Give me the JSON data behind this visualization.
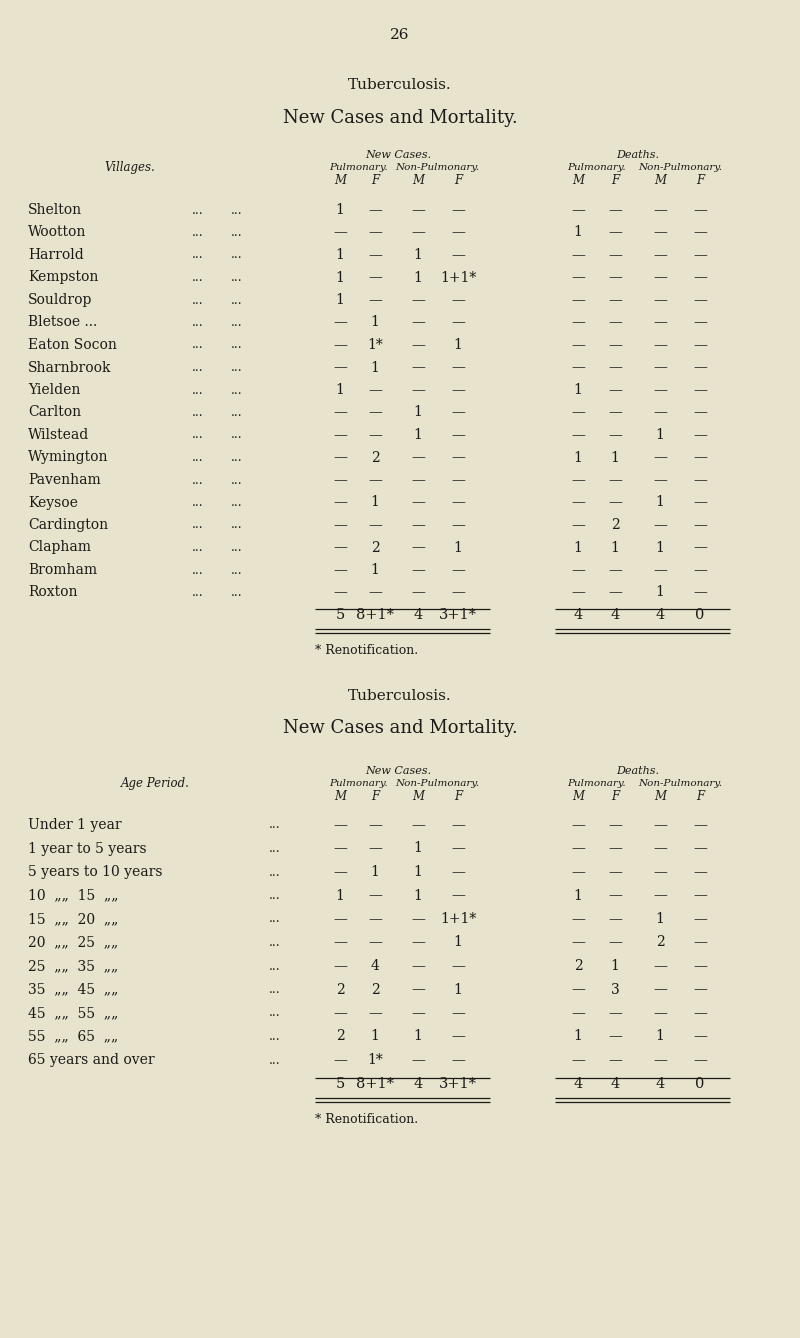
{
  "background_color": "#e8e3cc",
  "page_number": "26",
  "table1": {
    "title1": "Tuberculosis.",
    "title2": "New Cases and Mortality.",
    "new_cases_label": "New Cases.",
    "deaths_label": "Deaths.",
    "pulmonary_label": "Pulmonary.",
    "non_pulmonary_label": "Non-Pulmonary.",
    "mf_labels": [
      "M",
      "F",
      "M",
      "F",
      "M",
      "F",
      "M",
      "F"
    ],
    "row_label_header": "Villages.",
    "rows": [
      {
        "label": "Shelton",
        "nc_pm": "1",
        "nc_pf": "—",
        "nc_npm": "—",
        "nc_npf": "—",
        "d_pm": "—",
        "d_pf": "—",
        "d_npm": "—",
        "d_npf": "—"
      },
      {
        "label": "Wootton",
        "nc_pm": "—",
        "nc_pf": "—",
        "nc_npm": "—",
        "nc_npf": "—",
        "d_pm": "1",
        "d_pf": "—",
        "d_npm": "—",
        "d_npf": "—"
      },
      {
        "label": "Harrold",
        "nc_pm": "1",
        "nc_pf": "—",
        "nc_npm": "1",
        "nc_npf": "—",
        "d_pm": "—",
        "d_pf": "—",
        "d_npm": "—",
        "d_npf": "—"
      },
      {
        "label": "Kempston",
        "nc_pm": "1",
        "nc_pf": "—",
        "nc_npm": "1",
        "nc_npf": "1+1*",
        "d_pm": "—",
        "d_pf": "—",
        "d_npm": "—",
        "d_npf": "—"
      },
      {
        "label": "Souldrop",
        "nc_pm": "1",
        "nc_pf": "—",
        "nc_npm": "—",
        "nc_npf": "—",
        "d_pm": "—",
        "d_pf": "—",
        "d_npm": "—",
        "d_npf": "—"
      },
      {
        "label": "Bletsoe ...",
        "nc_pm": "—",
        "nc_pf": "1",
        "nc_npm": "—",
        "nc_npf": "—",
        "d_pm": "—",
        "d_pf": "—",
        "d_npm": "—",
        "d_npf": "—"
      },
      {
        "label": "Eaton Socon",
        "nc_pm": "—",
        "nc_pf": "1*",
        "nc_npm": "—",
        "nc_npf": "1",
        "d_pm": "—",
        "d_pf": "—",
        "d_npm": "—",
        "d_npf": "—"
      },
      {
        "label": "Sharnbrook",
        "nc_pm": "—",
        "nc_pf": "1",
        "nc_npm": "—",
        "nc_npf": "—",
        "d_pm": "—",
        "d_pf": "—",
        "d_npm": "—",
        "d_npf": "—"
      },
      {
        "label": "Yielden",
        "nc_pm": "1",
        "nc_pf": "—",
        "nc_npm": "—",
        "nc_npf": "—",
        "d_pm": "1",
        "d_pf": "—",
        "d_npm": "—",
        "d_npf": "—"
      },
      {
        "label": "Carlton",
        "nc_pm": "—",
        "nc_pf": "—",
        "nc_npm": "1",
        "nc_npf": "—",
        "d_pm": "—",
        "d_pf": "—",
        "d_npm": "—",
        "d_npf": "—"
      },
      {
        "label": "Wilstead",
        "nc_pm": "—",
        "nc_pf": "—",
        "nc_npm": "1",
        "nc_npf": "—",
        "d_pm": "—",
        "d_pf": "—",
        "d_npm": "1",
        "d_npf": "—"
      },
      {
        "label": "Wymington",
        "nc_pm": "—",
        "nc_pf": "2",
        "nc_npm": "—",
        "nc_npf": "—",
        "d_pm": "1",
        "d_pf": "1",
        "d_npm": "—",
        "d_npf": "—"
      },
      {
        "label": "Pavenham",
        "nc_pm": "—",
        "nc_pf": "—",
        "nc_npm": "—",
        "nc_npf": "—",
        "d_pm": "—",
        "d_pf": "—",
        "d_npm": "—",
        "d_npf": "—"
      },
      {
        "label": "Keysoe",
        "nc_pm": "—",
        "nc_pf": "1",
        "nc_npm": "—",
        "nc_npf": "—",
        "d_pm": "—",
        "d_pf": "—",
        "d_npm": "1",
        "d_npf": "—"
      },
      {
        "label": "Cardington",
        "nc_pm": "—",
        "nc_pf": "—",
        "nc_npm": "—",
        "nc_npf": "—",
        "d_pm": "—",
        "d_pf": "2",
        "d_npm": "—",
        "d_npf": "—"
      },
      {
        "label": "Clapham",
        "nc_pm": "—",
        "nc_pf": "2",
        "nc_npm": "—",
        "nc_npf": "1",
        "d_pm": "1",
        "d_pf": "1",
        "d_npm": "1",
        "d_npf": "—"
      },
      {
        "label": "Bromham",
        "nc_pm": "—",
        "nc_pf": "1",
        "nc_npm": "—",
        "nc_npf": "—",
        "d_pm": "—",
        "d_pf": "—",
        "d_npm": "—",
        "d_npf": "—"
      },
      {
        "label": "Roxton",
        "nc_pm": "—",
        "nc_pf": "—",
        "nc_npm": "—",
        "nc_npf": "—",
        "d_pm": "—",
        "d_pf": "—",
        "d_npm": "1",
        "d_npf": "—"
      }
    ],
    "total": [
      "5",
      "8+1*",
      "4",
      "3+1*",
      "4",
      "4",
      "4",
      "0"
    ],
    "footnote": "* Renotification."
  },
  "table2": {
    "title1": "Tuberculosis.",
    "title2": "New Cases and Mortality.",
    "new_cases_label": "New Cases.",
    "deaths_label": "Deaths.",
    "pulmonary_label": "Pulmonary.",
    "non_pulmonary_label": "Non-Pulmonary.",
    "mf_labels": [
      "M",
      "F",
      "M",
      "F",
      "M",
      "F",
      "M",
      "F"
    ],
    "row_label_header": "Age Period.",
    "rows": [
      {
        "label": "Under 1 year",
        "nc_pm": "—",
        "nc_pf": "—",
        "nc_npm": "—",
        "nc_npf": "—",
        "d_pm": "—",
        "d_pf": "—",
        "d_npm": "—",
        "d_npf": "—"
      },
      {
        "label": "1 year to 5 years",
        "nc_pm": "—",
        "nc_pf": "—",
        "nc_npm": "1",
        "nc_npf": "—",
        "d_pm": "—",
        "d_pf": "—",
        "d_npm": "—",
        "d_npf": "—"
      },
      {
        "label": "5 years to 10 years",
        "nc_pm": "—",
        "nc_pf": "1",
        "nc_npm": "1",
        "nc_npf": "—",
        "d_pm": "—",
        "d_pf": "—",
        "d_npm": "—",
        "d_npf": "—"
      },
      {
        "label": "10  „„  15  „„",
        "nc_pm": "1",
        "nc_pf": "—",
        "nc_npm": "1",
        "nc_npf": "—",
        "d_pm": "1",
        "d_pf": "—",
        "d_npm": "—",
        "d_npf": "—"
      },
      {
        "label": "15  „„  20  „„",
        "nc_pm": "—",
        "nc_pf": "—",
        "nc_npm": "—",
        "nc_npf": "1+1*",
        "d_pm": "—",
        "d_pf": "—",
        "d_npm": "1",
        "d_npf": "—"
      },
      {
        "label": "20  „„  25  „„",
        "nc_pm": "—",
        "nc_pf": "—",
        "nc_npm": "—",
        "nc_npf": "1",
        "d_pm": "—",
        "d_pf": "—",
        "d_npm": "2",
        "d_npf": "—"
      },
      {
        "label": "25  „„  35  „„",
        "nc_pm": "—",
        "nc_pf": "4",
        "nc_npm": "—",
        "nc_npf": "—",
        "d_pm": "2",
        "d_pf": "1",
        "d_npm": "—",
        "d_npf": "—"
      },
      {
        "label": "35  „„  45  „„",
        "nc_pm": "2",
        "nc_pf": "2",
        "nc_npm": "—",
        "nc_npf": "1",
        "d_pm": "—",
        "d_pf": "3",
        "d_npm": "—",
        "d_npf": "—"
      },
      {
        "label": "45  „„  55  „„",
        "nc_pm": "—",
        "nc_pf": "—",
        "nc_npm": "—",
        "nc_npf": "—",
        "d_pm": "—",
        "d_pf": "—",
        "d_npm": "—",
        "d_npf": "—"
      },
      {
        "label": "55  „„  65  „„",
        "nc_pm": "2",
        "nc_pf": "1",
        "nc_npm": "1",
        "nc_npf": "—",
        "d_pm": "1",
        "d_pf": "—",
        "d_npm": "1",
        "d_npf": "—"
      },
      {
        "label": "65 years and over",
        "nc_pm": "—",
        "nc_pf": "1*",
        "nc_npm": "—",
        "nc_npf": "—",
        "d_pm": "—",
        "d_pf": "—",
        "d_npm": "—",
        "d_npf": "—"
      }
    ],
    "total": [
      "5",
      "8+1*",
      "4",
      "3+1*",
      "4",
      "4",
      "4",
      "0"
    ],
    "footnote": "* Renotification."
  }
}
